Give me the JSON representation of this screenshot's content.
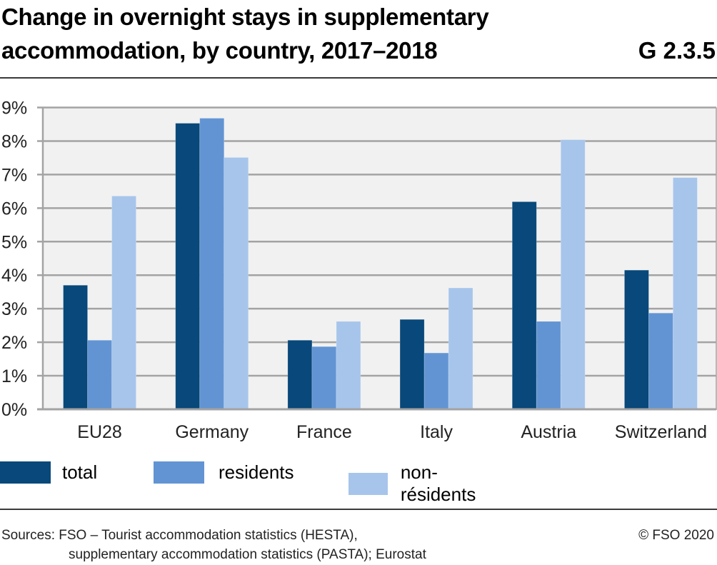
{
  "header": {
    "title_line1": "Change in overnight stays in supplementary",
    "title_line2": "accommodation, by country,  2017–2018",
    "code": "G 2.3.5"
  },
  "colors": {
    "total": "#08487a",
    "residents": "#6294d3",
    "non_residents": "#a7c5eb",
    "plot_bg": "#f1f1f1",
    "grid": "#a3a3a3"
  },
  "chart_data": {
    "type": "bar",
    "title": "Change in overnight stays in supplementary accommodation, by country, 2017–2018",
    "xlabel": "",
    "ylabel": "",
    "categories": [
      "EU28",
      "Germany",
      "France",
      "Italy",
      "Austria",
      "Switzerland"
    ],
    "series": [
      {
        "name": "total",
        "key": "total",
        "values": [
          3.7,
          8.53,
          2.06,
          2.68,
          6.19,
          4.15
        ]
      },
      {
        "name": "residents",
        "key": "residents",
        "values": [
          2.06,
          8.68,
          1.87,
          1.68,
          2.62,
          2.87
        ]
      },
      {
        "name": "non-résidents",
        "key": "non_residents",
        "values": [
          6.36,
          7.51,
          2.62,
          3.62,
          8.04,
          6.91
        ]
      }
    ],
    "ylim": [
      0,
      9
    ],
    "yticks": [
      0,
      1,
      2,
      3,
      4,
      5,
      6,
      7,
      8,
      9
    ],
    "ytick_labels": [
      "0%",
      "1%",
      "2%",
      "3%",
      "4%",
      "5%",
      "6%",
      "7%",
      "8%",
      "9%"
    ],
    "grid": true,
    "legend_position": "bottom"
  },
  "footer": {
    "sources_line1": "Sources: FSO – Tourist accommodation statistics (HESTA),",
    "sources_line2": "supplementary accommodation statistics (PASTA); Eurostat",
    "copyright": "© FSO 2020"
  }
}
